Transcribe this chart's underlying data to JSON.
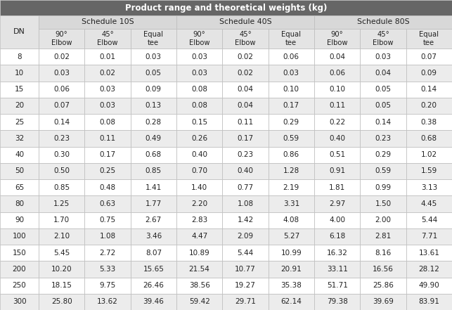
{
  "title": "Product range and theoretical weights (kg)",
  "col_groups": [
    {
      "label": "Schedule 10S",
      "cols": 3
    },
    {
      "label": "Schedule 40S",
      "cols": 3
    },
    {
      "label": "Schedule 80S",
      "cols": 3
    }
  ],
  "sub_headers": [
    "90°\nElbow",
    "45°\nElbow",
    "Equal\ntee"
  ],
  "dn_col": "DN",
  "rows": [
    [
      8,
      0.02,
      0.01,
      0.03,
      0.03,
      0.02,
      0.06,
      0.04,
      0.03,
      0.07
    ],
    [
      10,
      0.03,
      0.02,
      0.05,
      0.03,
      0.02,
      0.03,
      0.06,
      0.04,
      0.09
    ],
    [
      15,
      0.06,
      0.03,
      0.09,
      0.08,
      0.04,
      0.1,
      0.1,
      0.05,
      0.14
    ],
    [
      20,
      0.07,
      0.03,
      0.13,
      0.08,
      0.04,
      0.17,
      0.11,
      0.05,
      0.2
    ],
    [
      25,
      0.14,
      0.08,
      0.28,
      0.15,
      0.11,
      0.29,
      0.22,
      0.14,
      0.38
    ],
    [
      32,
      0.23,
      0.11,
      0.49,
      0.26,
      0.17,
      0.59,
      0.4,
      0.23,
      0.68
    ],
    [
      40,
      0.3,
      0.17,
      0.68,
      0.4,
      0.23,
      0.86,
      0.51,
      0.29,
      1.02
    ],
    [
      50,
      0.5,
      0.25,
      0.85,
      0.7,
      0.4,
      1.28,
      0.91,
      0.59,
      1.59
    ],
    [
      65,
      0.85,
      0.48,
      1.41,
      1.4,
      0.77,
      2.19,
      1.81,
      0.99,
      3.13
    ],
    [
      80,
      1.25,
      0.63,
      1.77,
      2.2,
      1.08,
      3.31,
      2.97,
      1.5,
      4.45
    ],
    [
      90,
      1.7,
      0.75,
      2.67,
      2.83,
      1.42,
      4.08,
      4.0,
      2.0,
      5.44
    ],
    [
      100,
      2.1,
      1.08,
      3.46,
      4.47,
      2.09,
      5.27,
      6.18,
      2.81,
      7.71
    ],
    [
      150,
      5.45,
      2.72,
      8.07,
      10.89,
      5.44,
      10.99,
      16.32,
      8.16,
      13.61
    ],
    [
      200,
      10.2,
      5.33,
      15.65,
      21.54,
      10.77,
      20.91,
      33.11,
      16.56,
      28.12
    ],
    [
      250,
      18.15,
      9.75,
      26.46,
      38.56,
      19.27,
      35.38,
      51.71,
      25.86,
      49.9
    ],
    [
      300,
      25.8,
      13.62,
      39.46,
      59.42,
      29.71,
      62.14,
      79.38,
      39.69,
      83.91
    ]
  ],
  "title_bg": "#666666",
  "title_fg": "#ffffff",
  "header1_bg": "#d8d8d8",
  "header1_fg": "#222222",
  "header2_bg": "#e4e4e4",
  "header2_fg": "#222222",
  "dn_header_bg": "#e4e4e4",
  "dn_header_fg": "#222222",
  "row_odd_bg": "#ffffff",
  "row_even_bg": "#ececec",
  "row_fg": "#222222",
  "border_color": "#bbbbbb",
  "linewidth": 0.5,
  "title_fontsize": 8.5,
  "header1_fontsize": 7.8,
  "header2_fontsize": 7.2,
  "data_fontsize": 7.5,
  "dn_fontsize": 8.0
}
